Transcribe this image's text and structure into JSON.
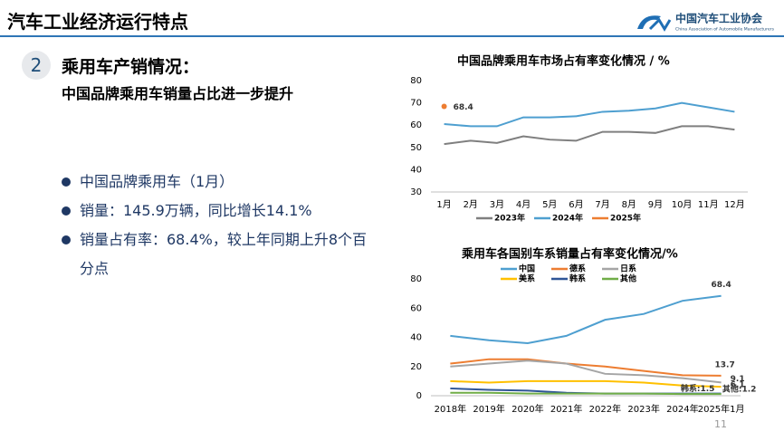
{
  "header": {
    "title": "汽车工业经济运行特点",
    "logo_name": "中国汽车工业协会",
    "logo_subtitle": "China Association of Automobile Manufacturers"
  },
  "section": {
    "number": "2",
    "title": "乘用车产销情况：",
    "subtitle": "中国品牌乘用车销量占比进一步提升"
  },
  "bullets": [
    "中国品牌乘用车（1月）",
    "销量：145.9万辆，同比增长14.1%",
    "销量占有率：68.4%，较上年同期上升8个百分点"
  ],
  "page_number": "11",
  "chart_data": [
    {
      "type": "line",
      "title": "中国品牌乘用车市场占有率变化情况 / %",
      "categories": [
        "1月",
        "2月",
        "3月",
        "4月",
        "5月",
        "6月",
        "7月",
        "8月",
        "9月",
        "10月",
        "11月",
        "12月"
      ],
      "ylim": [
        30,
        80
      ],
      "yticks": [
        30,
        40,
        50,
        60,
        70,
        80
      ],
      "grid": false,
      "legend": "bottom",
      "series": [
        {
          "name": "2023年",
          "color": "#7f7f7f",
          "values": [
            51.5,
            53,
            52,
            55,
            53.5,
            53,
            57,
            57,
            56.5,
            59.5,
            59.5,
            58
          ]
        },
        {
          "name": "2024年",
          "color": "#4e9fd0",
          "values": [
            60.5,
            59.5,
            59.5,
            63.5,
            63.5,
            64,
            66,
            66.5,
            67.5,
            70,
            68,
            66
          ]
        },
        {
          "name": "2025年",
          "color": "#ed7d31",
          "values": [
            68.4,
            null,
            null,
            null,
            null,
            null,
            null,
            null,
            null,
            null,
            null,
            null
          ]
        }
      ]
    },
    {
      "type": "line",
      "title": "乘用车各国别车系销量占有率变化情况/%",
      "categories": [
        "2018年",
        "2019年",
        "2020年",
        "2021年",
        "2022年",
        "2023年",
        "2024年",
        "2025年1月"
      ],
      "ylim": [
        0,
        80
      ],
      "yticks": [
        0,
        20,
        40,
        60,
        80
      ],
      "grid": false,
      "legend": "top",
      "series": [
        {
          "name": "中国",
          "color": "#4e9fd0",
          "values": [
            41,
            38,
            36,
            41,
            52,
            56,
            65,
            68.4
          ]
        },
        {
          "name": "德系",
          "color": "#ed7d31",
          "values": [
            22,
            25,
            25,
            22,
            20,
            17,
            14,
            13.7
          ]
        },
        {
          "name": "日系",
          "color": "#a5a5a5",
          "values": [
            20,
            22,
            24,
            22,
            15,
            14,
            12,
            9.1
          ]
        },
        {
          "name": "美系",
          "color": "#ffc000",
          "values": [
            10,
            9,
            10,
            10,
            10,
            9,
            7,
            6.1
          ]
        },
        {
          "name": "韩系",
          "color": "#2f5597",
          "values": [
            5,
            4,
            3.5,
            2,
            1.5,
            1.5,
            1.5,
            1.5
          ],
          "value_labels": [
            null,
            null,
            null,
            null,
            null,
            null,
            null,
            "韩系:1.5"
          ]
        },
        {
          "name": "其他",
          "color": "#70ad47",
          "values": [
            2,
            2,
            1.5,
            1.5,
            1.5,
            1.5,
            1.2,
            1.2
          ],
          "value_labels": [
            null,
            null,
            null,
            null,
            null,
            null,
            null,
            "其他:1.2"
          ]
        }
      ]
    }
  ]
}
